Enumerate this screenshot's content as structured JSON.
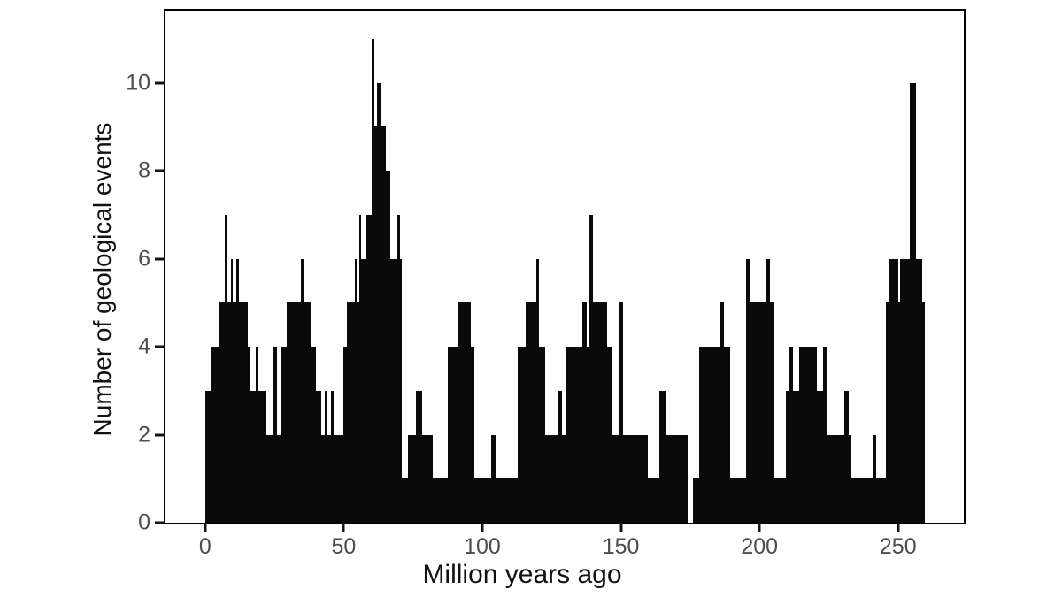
{
  "figure": {
    "background_color": "#ffffff",
    "frame_color": "#000000",
    "tick_label_color": "#4d4d4d",
    "axis_title_color": "#111111"
  },
  "chart_data": {
    "type": "bar",
    "title": "",
    "xlabel": "Million years ago",
    "ylabel": "Number of geological events",
    "x_ticks": [
      0,
      50,
      100,
      150,
      200,
      250
    ],
    "y_ticks": [
      0,
      2,
      4,
      6,
      8,
      10
    ],
    "xlim": [
      -14.3,
      273.7
    ],
    "ylim": [
      0,
      11.64
    ],
    "grid": false,
    "legend": false,
    "bar_color": "#0a0a0a",
    "segments_format": [
      "from_myr",
      "to_myr",
      "count"
    ],
    "segments": [
      [
        0,
        2,
        3
      ],
      [
        2,
        4.8,
        4
      ],
      [
        4.8,
        7,
        5
      ],
      [
        7,
        8,
        7
      ],
      [
        8,
        9.2,
        5
      ],
      [
        9.2,
        10,
        6
      ],
      [
        10,
        11.3,
        5
      ],
      [
        11.3,
        12.2,
        6
      ],
      [
        12.2,
        15.4,
        5
      ],
      [
        15.4,
        16.5,
        4
      ],
      [
        16.5,
        18.3,
        3
      ],
      [
        18.3,
        19.2,
        4
      ],
      [
        19.2,
        22,
        3
      ],
      [
        22,
        24.3,
        2
      ],
      [
        24.3,
        26,
        4
      ],
      [
        26,
        27.6,
        2
      ],
      [
        27.6,
        29.3,
        4
      ],
      [
        29.3,
        34.4,
        5
      ],
      [
        34.4,
        35.6,
        6
      ],
      [
        35.6,
        38.1,
        5
      ],
      [
        38.1,
        39.9,
        4
      ],
      [
        39.9,
        41.8,
        3
      ],
      [
        41.8,
        43.2,
        2
      ],
      [
        43.2,
        44,
        3
      ],
      [
        44,
        45.5,
        2
      ],
      [
        45.5,
        46.5,
        3
      ],
      [
        46.5,
        49.9,
        2
      ],
      [
        49.9,
        51.3,
        4
      ],
      [
        51.3,
        54,
        5
      ],
      [
        54,
        54.8,
        6
      ],
      [
        54.8,
        55.5,
        5
      ],
      [
        55.5,
        56.3,
        7
      ],
      [
        56.3,
        58.2,
        6
      ],
      [
        58.2,
        60,
        7
      ],
      [
        60,
        61,
        11
      ],
      [
        61,
        61.9,
        9
      ],
      [
        61.9,
        63.7,
        10
      ],
      [
        63.7,
        65.1,
        9
      ],
      [
        65.1,
        66.7,
        8
      ],
      [
        66.7,
        69.2,
        6
      ],
      [
        69.2,
        70.2,
        7
      ],
      [
        70.2,
        71.1,
        6
      ],
      [
        71.1,
        73.2,
        1
      ],
      [
        73.2,
        76.2,
        2
      ],
      [
        76.2,
        78.3,
        3
      ],
      [
        78.3,
        82,
        2
      ],
      [
        82,
        87.5,
        1
      ],
      [
        87.5,
        91,
        4
      ],
      [
        91,
        95.8,
        5
      ],
      [
        95.8,
        97.2,
        4
      ],
      [
        97.2,
        103.2,
        1
      ],
      [
        103.2,
        104.8,
        2
      ],
      [
        104.8,
        112.7,
        1
      ],
      [
        112.7,
        115.7,
        4
      ],
      [
        115.7,
        119.6,
        5
      ],
      [
        119.6,
        120.6,
        6
      ],
      [
        120.6,
        122.6,
        4
      ],
      [
        122.6,
        127.5,
        2
      ],
      [
        127.5,
        128.6,
        3
      ],
      [
        128.6,
        130.2,
        2
      ],
      [
        130.2,
        136,
        4
      ],
      [
        136,
        137.6,
        5
      ],
      [
        137.6,
        138.6,
        4
      ],
      [
        138.6,
        140,
        7
      ],
      [
        140,
        145,
        5
      ],
      [
        145,
        146.5,
        4
      ],
      [
        146.5,
        149.3,
        2
      ],
      [
        149.3,
        150.8,
        5
      ],
      [
        150.8,
        159.6,
        2
      ],
      [
        159.6,
        164,
        1
      ],
      [
        164,
        166.1,
        3
      ],
      [
        166.1,
        174.2,
        2
      ],
      [
        174.2,
        176,
        0
      ],
      [
        176,
        178.3,
        1
      ],
      [
        178.3,
        185.9,
        4
      ],
      [
        185.9,
        187.1,
        5
      ],
      [
        187.1,
        189.4,
        4
      ],
      [
        189.4,
        195.2,
        1
      ],
      [
        195.2,
        196.3,
        6
      ],
      [
        196.3,
        202.6,
        5
      ],
      [
        202.6,
        203.9,
        6
      ],
      [
        203.9,
        205.3,
        5
      ],
      [
        205.3,
        209.5,
        1
      ],
      [
        209.5,
        210.9,
        3
      ],
      [
        210.9,
        212,
        4
      ],
      [
        212,
        214.3,
        3
      ],
      [
        214.3,
        220.6,
        4
      ],
      [
        220.6,
        222.8,
        3
      ],
      [
        222.8,
        224.3,
        4
      ],
      [
        224.3,
        230.7,
        2
      ],
      [
        230.7,
        232.1,
        3
      ],
      [
        232.1,
        233.3,
        2
      ],
      [
        233.3,
        240.7,
        1
      ],
      [
        240.7,
        242,
        2
      ],
      [
        242,
        245.5,
        1
      ],
      [
        245.5,
        246.8,
        5
      ],
      [
        246.8,
        250,
        6
      ],
      [
        250,
        250.8,
        5
      ],
      [
        250.8,
        254.3,
        6
      ],
      [
        254.3,
        256.4,
        10
      ],
      [
        256.4,
        258.7,
        6
      ],
      [
        258.7,
        259.5,
        5
      ]
    ]
  }
}
